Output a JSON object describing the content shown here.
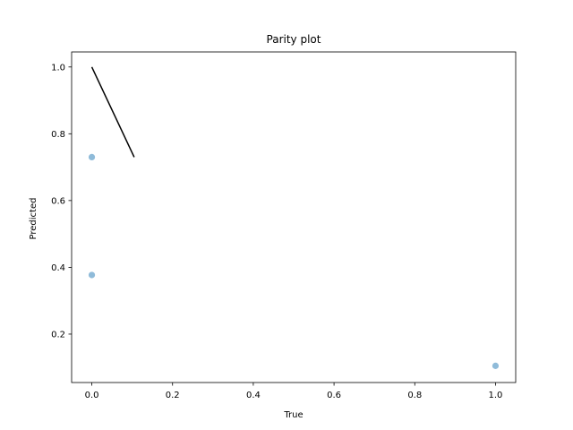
{
  "chart_data": {
    "type": "scatter",
    "title": "Parity plot",
    "xlabel": "True",
    "ylabel": "Predicted",
    "xlim": [
      -0.05,
      1.05
    ],
    "ylim": [
      0.055,
      1.045
    ],
    "xticks": [
      0.0,
      0.2,
      0.4,
      0.6,
      0.8,
      1.0
    ],
    "yticks": [
      0.2,
      0.4,
      0.6,
      0.8,
      1.0
    ],
    "xtick_labels": [
      "0.0",
      "0.2",
      "0.4",
      "0.6",
      "0.8",
      "1.0"
    ],
    "ytick_labels": [
      "0.2",
      "0.4",
      "0.6",
      "0.8",
      "1.0"
    ],
    "grid": false,
    "points": [
      {
        "x": 0.0,
        "y": 0.73
      },
      {
        "x": 0.0,
        "y": 0.377
      },
      {
        "x": 1.0,
        "y": 0.105
      }
    ],
    "line": {
      "x": [
        0.0,
        0.105
      ],
      "y": [
        1.0,
        0.73
      ]
    },
    "colors": {
      "points": "#8fbbd9",
      "line": "#000000"
    }
  }
}
